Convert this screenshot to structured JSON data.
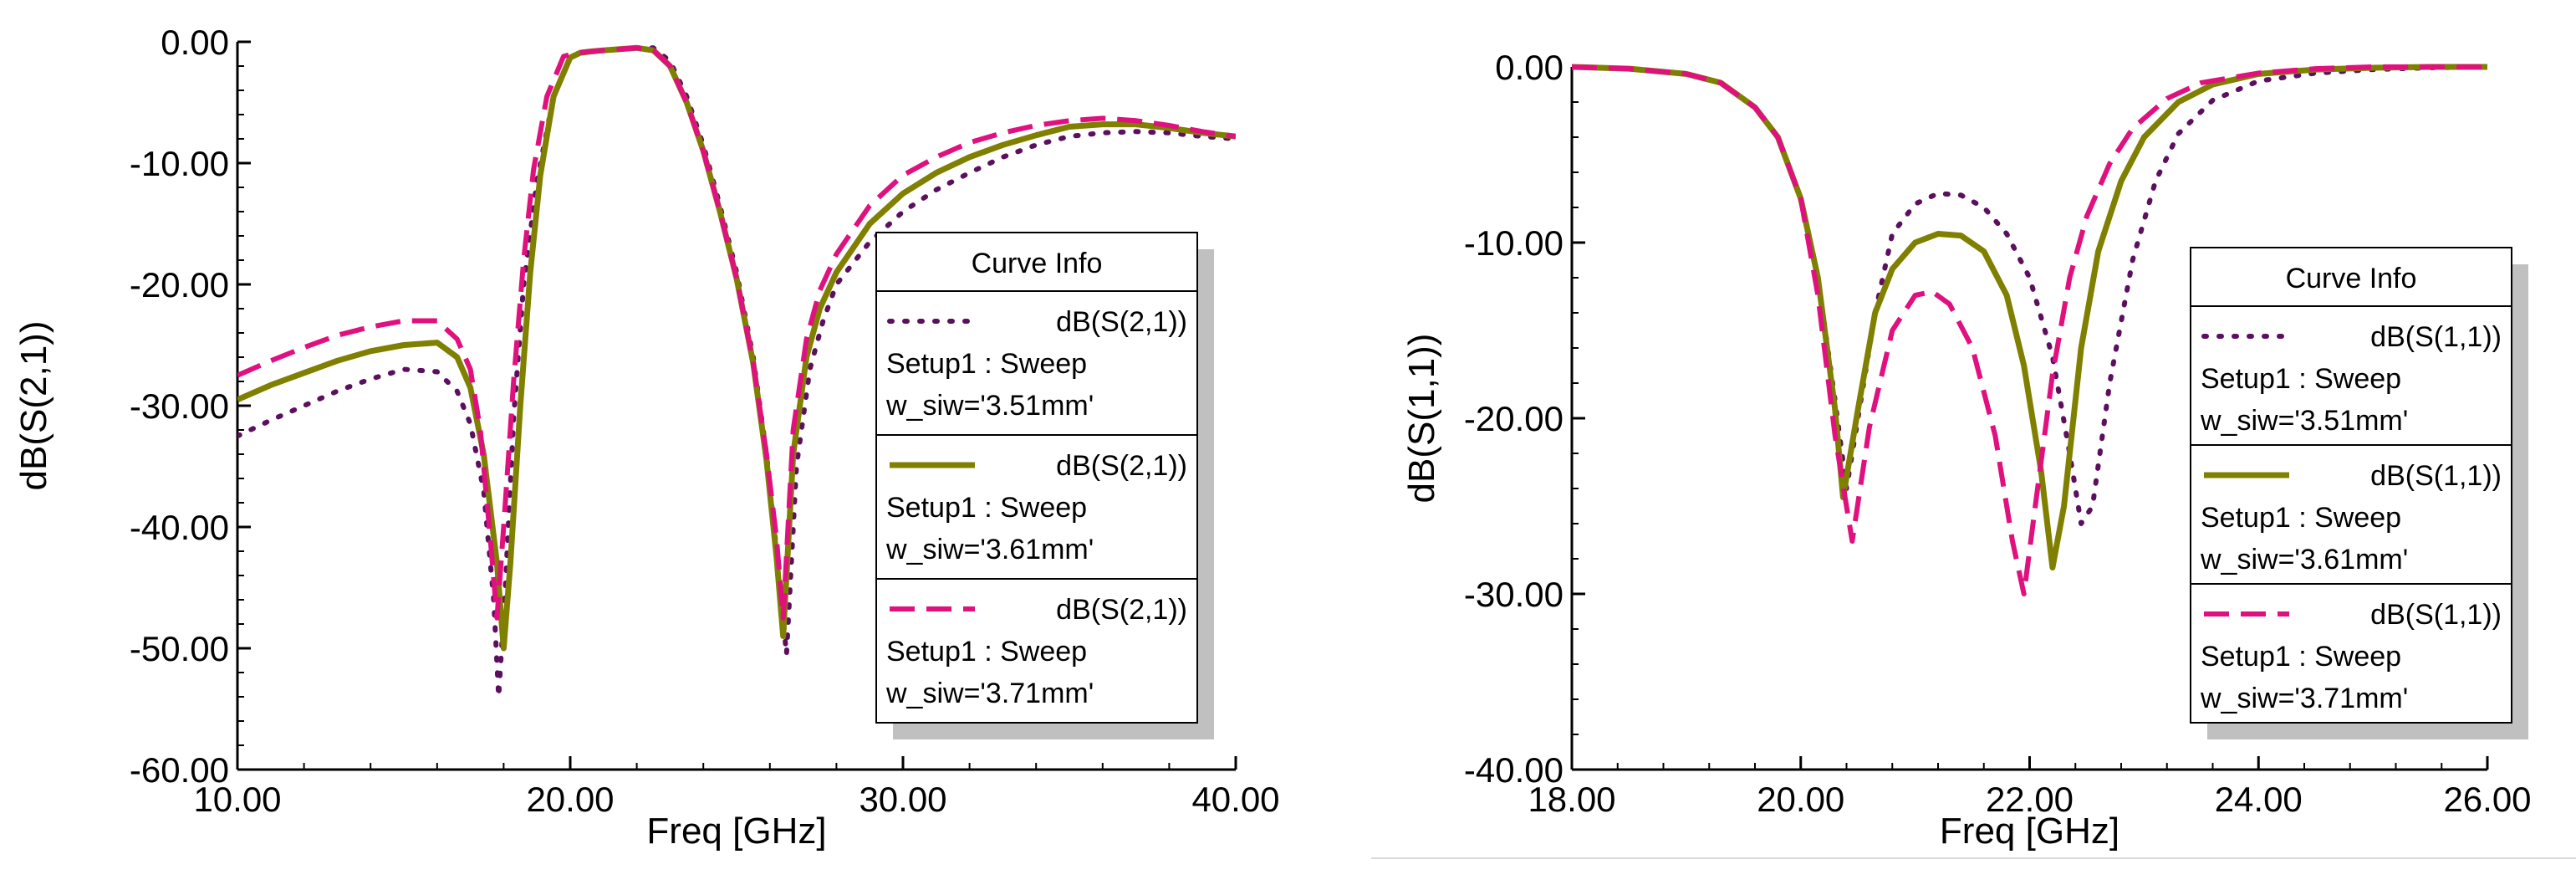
{
  "colors": {
    "series_0": "#5c0f5e",
    "series_1": "#7f7f00",
    "series_2": "#e0107f",
    "legend_border": "#000000",
    "legend_shadow": "#c0c0c0"
  },
  "chart_data": [
    {
      "type": "line",
      "xlabel": "Freq [GHz]",
      "ylabel": "dB(S(2,1))",
      "xlim": [
        10,
        40
      ],
      "ylim": [
        -60,
        0
      ],
      "xticks": [
        "10.00",
        "20.00",
        "30.00",
        "40.00"
      ],
      "yticks": [
        "0.00",
        "-10.00",
        "-20.00",
        "-30.00",
        "-40.00",
        "-50.00",
        "-60.00"
      ],
      "legend": {
        "title": "Curve Info",
        "placement": "right",
        "entries": [
          {
            "line1": "dB(S(2,1))",
            "line2": "Setup1 : Sweep",
            "line3": "w_siw='3.51mm'",
            "style": "dot"
          },
          {
            "line1": "dB(S(2,1))",
            "line2": "Setup1 : Sweep",
            "line3": "w_siw='3.61mm'",
            "style": "solid"
          },
          {
            "line1": "dB(S(2,1))",
            "line2": "Setup1 : Sweep",
            "line3": "w_siw='3.71mm'",
            "style": "dash"
          }
        ]
      },
      "series": [
        {
          "name": "w_siw='3.51mm'",
          "style": "dot",
          "x": [
            10,
            11,
            12,
            13,
            14,
            15,
            16,
            16.6,
            17.0,
            17.4,
            17.7,
            17.85,
            18.05,
            18.3,
            18.6,
            19.0,
            19.5,
            20.0,
            20.3,
            20.6,
            21.0,
            21.5,
            22.0,
            22.5,
            23.0,
            23.5,
            24.0,
            24.5,
            25.0,
            25.5,
            25.9,
            26.2,
            26.5,
            26.8,
            27.2,
            27.6,
            28.0,
            29.0,
            30.0,
            31.0,
            32.0,
            33.0,
            34.0,
            35.0,
            36.0,
            37.0,
            38.0,
            39.0,
            40.0
          ],
          "y": [
            -32.5,
            -31.2,
            -30.0,
            -28.8,
            -27.8,
            -27.0,
            -27.2,
            -28.8,
            -31.5,
            -37.0,
            -46.0,
            -54.0,
            -45.0,
            -31.0,
            -20.0,
            -11.5,
            -4.5,
            -1.3,
            -0.9,
            -0.8,
            -0.7,
            -0.6,
            -0.5,
            -0.5,
            -1.6,
            -4.5,
            -8.5,
            -13.5,
            -19.0,
            -26.0,
            -34.0,
            -42.0,
            -50.5,
            -35.0,
            -27.0,
            -23.0,
            -20.0,
            -16.5,
            -14.0,
            -12.2,
            -10.8,
            -9.5,
            -8.5,
            -7.8,
            -7.5,
            -7.4,
            -7.5,
            -7.8,
            -8.0
          ]
        },
        {
          "name": "w_siw='3.61mm'",
          "style": "solid",
          "x": [
            10,
            11,
            12,
            13,
            14,
            15,
            16,
            16.6,
            17.0,
            17.4,
            17.8,
            18.0,
            18.2,
            18.5,
            18.8,
            19.1,
            19.5,
            20.0,
            20.3,
            20.6,
            21.0,
            21.5,
            22.0,
            22.5,
            23.0,
            23.5,
            24.0,
            24.5,
            25.0,
            25.5,
            25.9,
            26.2,
            26.4,
            26.7,
            27.1,
            27.5,
            28.0,
            29.0,
            30.0,
            31.0,
            32.0,
            33.0,
            34.0,
            35.0,
            36.0,
            37.0,
            38.0,
            39.0,
            40.0
          ],
          "y": [
            -29.5,
            -28.3,
            -27.3,
            -26.3,
            -25.5,
            -25.0,
            -24.8,
            -26.0,
            -28.5,
            -34.0,
            -43.0,
            -50.0,
            -43.0,
            -30.0,
            -19.0,
            -11.0,
            -4.5,
            -1.3,
            -0.9,
            -0.8,
            -0.7,
            -0.6,
            -0.5,
            -0.7,
            -2.0,
            -5.0,
            -9.0,
            -14.0,
            -19.5,
            -26.5,
            -34.5,
            -42.5,
            -49.0,
            -34.0,
            -26.0,
            -22.0,
            -19.0,
            -15.0,
            -12.5,
            -10.8,
            -9.5,
            -8.5,
            -7.7,
            -7.0,
            -6.8,
            -6.8,
            -7.1,
            -7.5,
            -7.8
          ]
        },
        {
          "name": "w_siw='3.71mm'",
          "style": "dash",
          "x": [
            10,
            11,
            12,
            13,
            14,
            15,
            16,
            16.6,
            17.0,
            17.3,
            17.6,
            17.8,
            18.0,
            18.3,
            18.6,
            18.9,
            19.3,
            19.8,
            20.2,
            20.6,
            21.0,
            21.5,
            22.0,
            22.5,
            23.0,
            23.5,
            24.0,
            24.5,
            25.0,
            25.5,
            25.9,
            26.2,
            26.4,
            26.7,
            27.1,
            27.5,
            28.0,
            29.0,
            30.0,
            31.0,
            32.0,
            33.0,
            34.0,
            35.0,
            36.0,
            37.0,
            38.0,
            39.0,
            40.0
          ],
          "y": [
            -27.5,
            -26.3,
            -25.2,
            -24.2,
            -23.5,
            -23.0,
            -23.0,
            -24.5,
            -27.0,
            -32.0,
            -41.0,
            -47.5,
            -40.0,
            -28.0,
            -18.0,
            -10.5,
            -4.5,
            -1.2,
            -0.9,
            -0.8,
            -0.7,
            -0.6,
            -0.5,
            -0.7,
            -2.0,
            -5.0,
            -9.0,
            -14.0,
            -19.5,
            -26.5,
            -34.0,
            -41.0,
            -47.5,
            -32.0,
            -24.5,
            -20.5,
            -17.5,
            -13.5,
            -11.0,
            -9.5,
            -8.3,
            -7.5,
            -6.9,
            -6.5,
            -6.3,
            -6.5,
            -6.9,
            -7.4,
            -7.8
          ]
        }
      ]
    },
    {
      "type": "line",
      "xlabel": "Freq [GHz]",
      "ylabel": "dB(S(1,1))",
      "xlim": [
        18,
        26
      ],
      "ylim": [
        -40,
        0
      ],
      "xticks": [
        "18.00",
        "20.00",
        "22.00",
        "24.00",
        "26.00"
      ],
      "yticks": [
        "0.00",
        "-10.00",
        "-20.00",
        "-30.00",
        "-40.00"
      ],
      "legend": {
        "title": "Curve Info",
        "placement": "right",
        "entries": [
          {
            "line1": "dB(S(1,1))",
            "line2": "Setup1 : Sweep",
            "line3": "w_siw='3.51mm'",
            "style": "dot"
          },
          {
            "line1": "dB(S(1,1))",
            "line2": "Setup1 : Sweep",
            "line3": "w_siw='3.61mm'",
            "style": "solid"
          },
          {
            "line1": "dB(S(1,1))",
            "line2": "Setup1 : Sweep",
            "line3": "w_siw='3.71mm'",
            "style": "dash"
          }
        ]
      },
      "series": [
        {
          "name": "w_siw='3.51mm'",
          "style": "dot",
          "x": [
            18.0,
            18.5,
            19.0,
            19.3,
            19.6,
            19.8,
            20.0,
            20.15,
            20.3,
            20.4,
            20.5,
            20.65,
            20.8,
            21.0,
            21.2,
            21.4,
            21.6,
            21.8,
            22.0,
            22.2,
            22.35,
            22.45,
            22.55,
            22.7,
            22.9,
            23.1,
            23.3,
            23.6,
            24.0,
            24.5,
            25.0,
            25.5,
            26.0
          ],
          "y": [
            0.0,
            -0.1,
            -0.4,
            -0.9,
            -2.3,
            -4.0,
            -7.5,
            -12.0,
            -19.0,
            -24.0,
            -20.0,
            -14.0,
            -9.5,
            -7.8,
            -7.2,
            -7.3,
            -8.0,
            -9.5,
            -12.0,
            -16.5,
            -22.0,
            -26.0,
            -25.0,
            -18.0,
            -11.0,
            -6.5,
            -3.8,
            -1.9,
            -0.8,
            -0.35,
            -0.15,
            -0.05,
            0.0
          ]
        },
        {
          "name": "w_siw='3.61mm'",
          "style": "solid",
          "x": [
            18.0,
            18.5,
            19.0,
            19.3,
            19.6,
            19.8,
            20.0,
            20.15,
            20.3,
            20.37,
            20.5,
            20.65,
            20.8,
            21.0,
            21.2,
            21.4,
            21.6,
            21.8,
            21.95,
            22.1,
            22.2,
            22.3,
            22.45,
            22.6,
            22.8,
            23.0,
            23.3,
            23.6,
            24.0,
            24.5,
            25.0,
            25.5,
            26.0
          ],
          "y": [
            0.0,
            -0.1,
            -0.4,
            -0.9,
            -2.3,
            -4.0,
            -7.5,
            -12.0,
            -19.5,
            -24.5,
            -19.5,
            -14.0,
            -11.5,
            -10.0,
            -9.5,
            -9.6,
            -10.5,
            -13.0,
            -17.0,
            -23.0,
            -28.5,
            -25.0,
            -16.0,
            -10.5,
            -6.5,
            -4.0,
            -2.0,
            -1.0,
            -0.4,
            -0.15,
            -0.05,
            0.0,
            0.0
          ]
        },
        {
          "name": "w_siw='3.71mm'",
          "style": "dash",
          "x": [
            18.0,
            18.5,
            19.0,
            19.3,
            19.6,
            19.8,
            20.0,
            20.15,
            20.3,
            20.45,
            20.6,
            20.8,
            21.0,
            21.15,
            21.3,
            21.5,
            21.7,
            21.85,
            21.95,
            22.05,
            22.2,
            22.35,
            22.5,
            22.7,
            22.9,
            23.2,
            23.5,
            24.0,
            24.5,
            25.0,
            25.5,
            26.0
          ],
          "y": [
            0.0,
            -0.1,
            -0.4,
            -0.9,
            -2.3,
            -4.0,
            -7.5,
            -13.0,
            -21.0,
            -27.0,
            -20.5,
            -15.0,
            -13.0,
            -12.8,
            -13.5,
            -16.0,
            -21.0,
            -27.0,
            -30.0,
            -25.0,
            -17.5,
            -12.0,
            -8.5,
            -5.5,
            -3.5,
            -1.8,
            -0.9,
            -0.35,
            -0.1,
            0.0,
            0.0,
            0.0
          ]
        }
      ]
    }
  ]
}
